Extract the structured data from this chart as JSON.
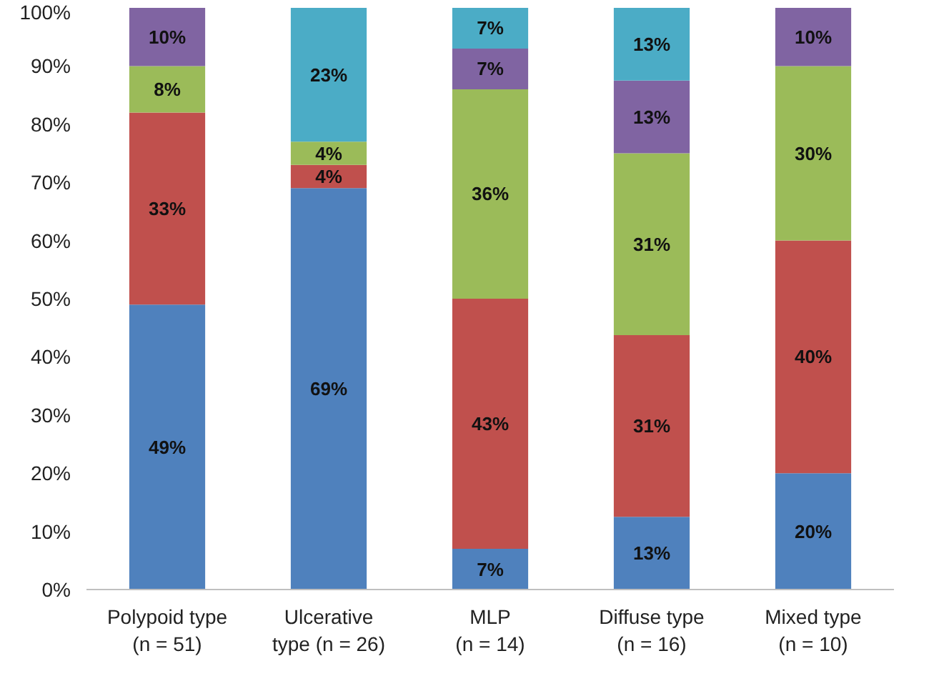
{
  "chart_data": {
    "type": "bar",
    "stacked": true,
    "categories": [
      "Polypoid type\n(n = 51)",
      "Ulcerative\ntype (n = 26)",
      "MLP\n(n = 14)",
      "Diffuse type\n(n = 16)",
      "Mixed type\n(n = 10)"
    ],
    "series": [
      {
        "color": "#4f81bd",
        "values": [
          49,
          69,
          7,
          12.5,
          20
        ],
        "value_labels": [
          "49%",
          "69%",
          "7%",
          "13%",
          "20%"
        ]
      },
      {
        "color": "#c0504d",
        "values": [
          33,
          4,
          43,
          31.25,
          40
        ],
        "value_labels": [
          "33%",
          "4%",
          "43%",
          "31%",
          "40%"
        ]
      },
      {
        "color": "#9bbb59",
        "values": [
          8,
          4,
          36,
          31.25,
          30
        ],
        "value_labels": [
          "8%",
          "4%",
          "36%",
          "31%",
          "30%"
        ]
      },
      {
        "color": "#8064a2",
        "values": [
          10,
          null,
          7,
          12.5,
          10
        ],
        "value_labels": [
          "10%",
          null,
          "7%",
          "13%",
          "10%"
        ]
      },
      {
        "color": "#4bacc6",
        "values": [
          null,
          23,
          7,
          12.5,
          null
        ],
        "value_labels": [
          null,
          "23%",
          "7%",
          "13%",
          null
        ]
      }
    ],
    "ylim": [
      0,
      100
    ],
    "yticks": [
      {
        "value": 0,
        "label": "0%"
      },
      {
        "value": 10,
        "label": "10%"
      },
      {
        "value": 20,
        "label": "20%"
      },
      {
        "value": 30,
        "label": "30%"
      },
      {
        "value": 40,
        "label": "40%"
      },
      {
        "value": 50,
        "label": "50%"
      },
      {
        "value": 60,
        "label": "60%"
      },
      {
        "value": 70,
        "label": "70%"
      },
      {
        "value": 80,
        "label": "80%"
      },
      {
        "value": 90,
        "label": "90%"
      },
      {
        "value": 100,
        "label": "100%"
      }
    ],
    "grid": false
  }
}
